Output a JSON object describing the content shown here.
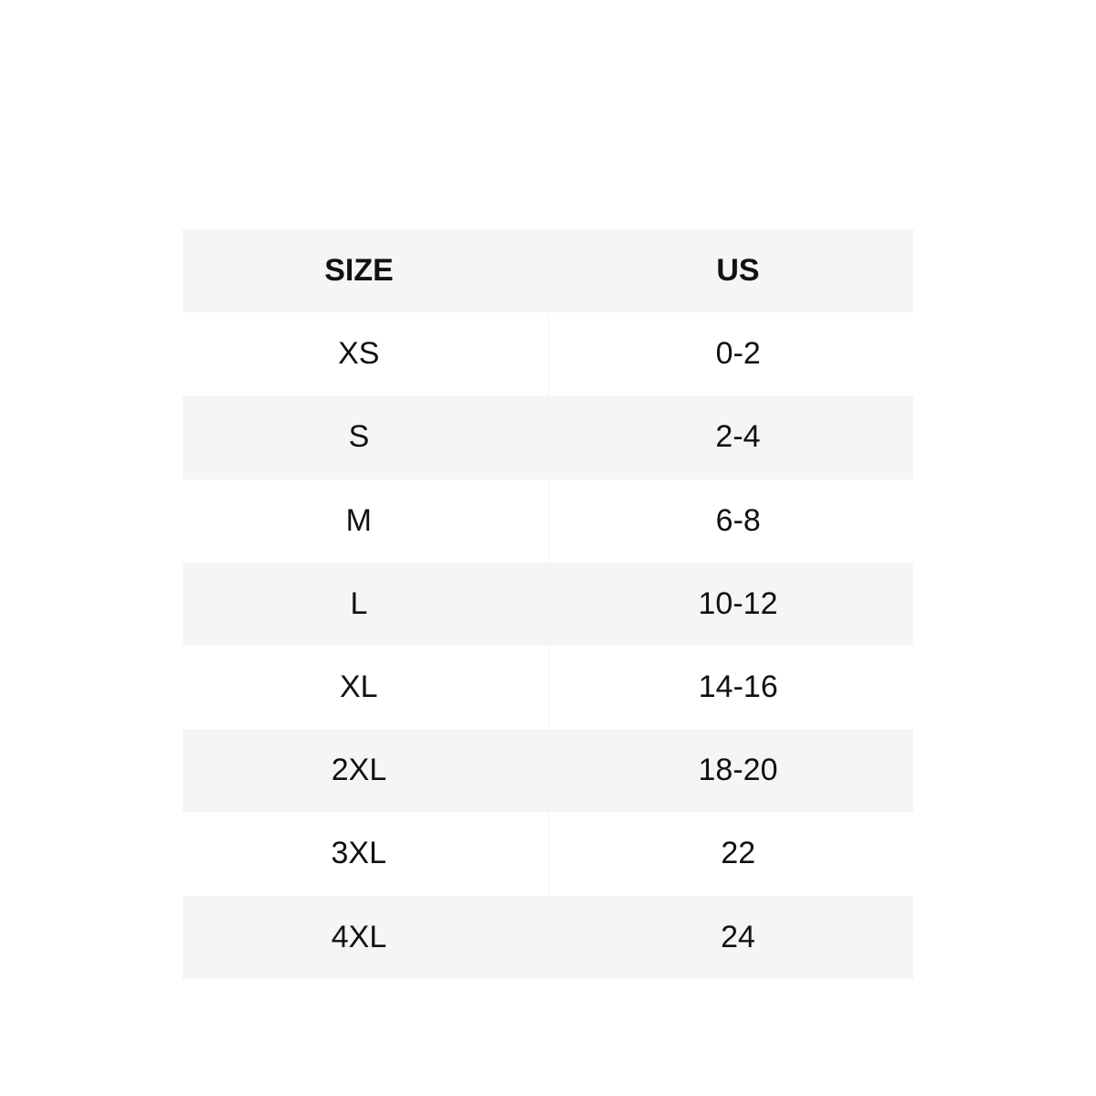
{
  "table": {
    "header": [
      "SIZE",
      "US"
    ],
    "rows": [
      [
        "XS",
        "0-2"
      ],
      [
        "S",
        "2-4"
      ],
      [
        "M",
        "6-8"
      ],
      [
        "L",
        "10-12"
      ],
      [
        "XL",
        "14-16"
      ],
      [
        "2XL",
        "18-20"
      ],
      [
        "3XL",
        "22"
      ],
      [
        "4XL",
        "24"
      ]
    ]
  }
}
